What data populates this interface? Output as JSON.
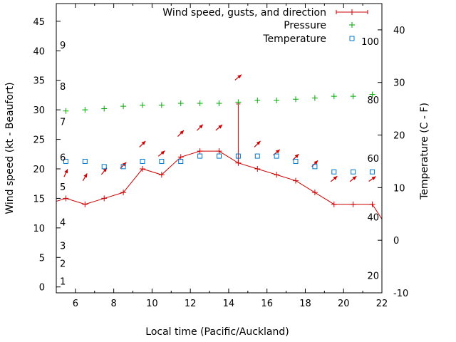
{
  "chart_data": {
    "type": "line",
    "xlabel": "Local time (Pacific/Auckland)",
    "ylabel_left": "Wind speed (kt - Beaufort)",
    "ylabel_right": "Temperature (C - F)",
    "xlim": [
      5,
      22
    ],
    "ylim_left": [
      -1,
      48
    ],
    "ylim_right": [
      -10,
      45
    ],
    "x_ticks": [
      6,
      8,
      10,
      12,
      14,
      16,
      18,
      20,
      22
    ],
    "y_ticks_left": [
      0,
      5,
      10,
      15,
      20,
      25,
      30,
      35,
      40,
      45
    ],
    "y_ticks_right": [
      -10,
      0,
      10,
      20,
      30,
      40
    ],
    "beaufort_labels": [
      {
        "label": "1",
        "y": 1
      },
      {
        "label": "2",
        "y": 4
      },
      {
        "label": "3",
        "y": 7
      },
      {
        "label": "4",
        "y": 11
      },
      {
        "label": "5",
        "y": 17
      },
      {
        "label": "6",
        "y": 22
      },
      {
        "label": "7",
        "y": 28
      },
      {
        "label": "8",
        "y": 34
      },
      {
        "label": "9",
        "y": 41
      }
    ],
    "fahrenheit_labels": [
      {
        "label": "20",
        "y": -6.7
      },
      {
        "label": "40",
        "y": 4.4
      },
      {
        "label": "60",
        "y": 15.6
      },
      {
        "label": "80",
        "y": 26.7
      },
      {
        "label": "100",
        "y": 37.8
      }
    ],
    "legend_position": "top-right",
    "series": [
      {
        "name": "Wind speed, gusts, and direction",
        "color": "#cc0000",
        "x": [
          5.0,
          5.5,
          6.5,
          7.5,
          8.5,
          9.5,
          10.5,
          11.5,
          12.5,
          13.5,
          14.5,
          15.5,
          16.5,
          17.5,
          18.5,
          19.5,
          20.5,
          21.5,
          22.0
        ],
        "y": [
          14.5,
          15,
          14,
          15,
          16,
          20,
          19,
          22,
          23,
          23,
          21,
          20,
          19,
          18,
          16,
          14,
          14,
          14,
          11.5
        ],
        "gust": {
          "x": 14.5,
          "from": 21,
          "to": 31
        },
        "direction_arrows_x": [
          5.5,
          6.5,
          7.5,
          8.5,
          9.5,
          10.5,
          11.5,
          12.5,
          13.5,
          14.5,
          15.5,
          16.5,
          17.5,
          18.5,
          19.5,
          20.5,
          21.5
        ],
        "direction_arrows_y": [
          19.3,
          18.6,
          19.6,
          20.6,
          24.2,
          22.6,
          26,
          27,
          27,
          35.5,
          24.2,
          22.8,
          22,
          20.9,
          18.3,
          18.3,
          18.3
        ],
        "direction_deg": [
          65,
          60,
          50,
          45,
          45,
          40,
          45,
          45,
          40,
          40,
          45,
          40,
          45,
          45,
          40,
          40,
          35
        ]
      },
      {
        "name": "Pressure",
        "color": "#00aa00",
        "x": [
          5.5,
          6.5,
          7.5,
          8.5,
          9.5,
          10.5,
          11.5,
          12.5,
          13.5,
          14.5,
          15.5,
          16.5,
          17.5,
          18.5,
          19.5,
          20.5,
          21.5
        ],
        "y": [
          29.8,
          30,
          30.2,
          30.6,
          30.8,
          30.8,
          31.1,
          31.1,
          31.1,
          31.3,
          31.6,
          31.6,
          31.8,
          32,
          32.3,
          32.3,
          32.6
        ]
      },
      {
        "name": "Temperature",
        "color": "#0077cc",
        "x": [
          5.5,
          6.5,
          7.5,
          8.5,
          9.5,
          10.5,
          11.5,
          12.5,
          13.5,
          14.5,
          15.5,
          16.5,
          17.5,
          18.5,
          19.5,
          20.5,
          21.5
        ],
        "y": [
          15,
          15,
          14,
          14,
          15,
          15,
          15,
          16,
          16,
          16,
          16,
          16,
          15,
          14,
          13,
          13,
          13
        ]
      }
    ]
  }
}
